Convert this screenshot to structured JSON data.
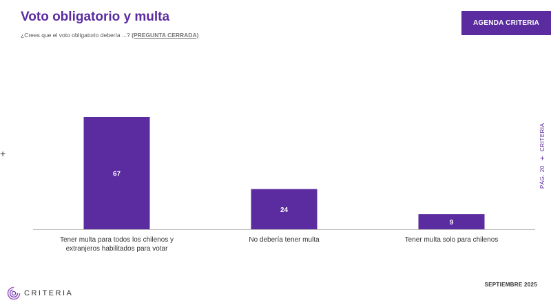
{
  "header": {
    "title": "Voto obligatorio y multa",
    "subtitle": "¿Crees que el voto obligatorio debería ...?",
    "subtitle_tag": "(PREGUNTA CERRADA)",
    "agenda_button": "AGENDA CRITERIA"
  },
  "side": {
    "page": "PÁG. 20",
    "separator": "+",
    "brand": "CRITERIA"
  },
  "left_mark": "+",
  "footer": {
    "date": "SEPTIEMBRE 2025",
    "logo_text": "CRITERIA"
  },
  "colors": {
    "accent": "#5b2ca0"
  },
  "chart_data": {
    "type": "bar",
    "categories": [
      "Tener multa para todos los chilenos y extranjeros habilitados para votar",
      "No debería tener multa",
      "Tener multa solo para chilenos"
    ],
    "category_lines": [
      [
        "Tener multa para todos los chilenos y",
        "extranjeros habilitados para votar"
      ],
      [
        "No debería tener multa"
      ],
      [
        "Tener multa solo para chilenos"
      ]
    ],
    "values": [
      67,
      24,
      9
    ],
    "data_labels": [
      "67",
      "24",
      "9"
    ],
    "ylim": [
      0,
      67
    ],
    "grid": false,
    "legend": "none"
  }
}
